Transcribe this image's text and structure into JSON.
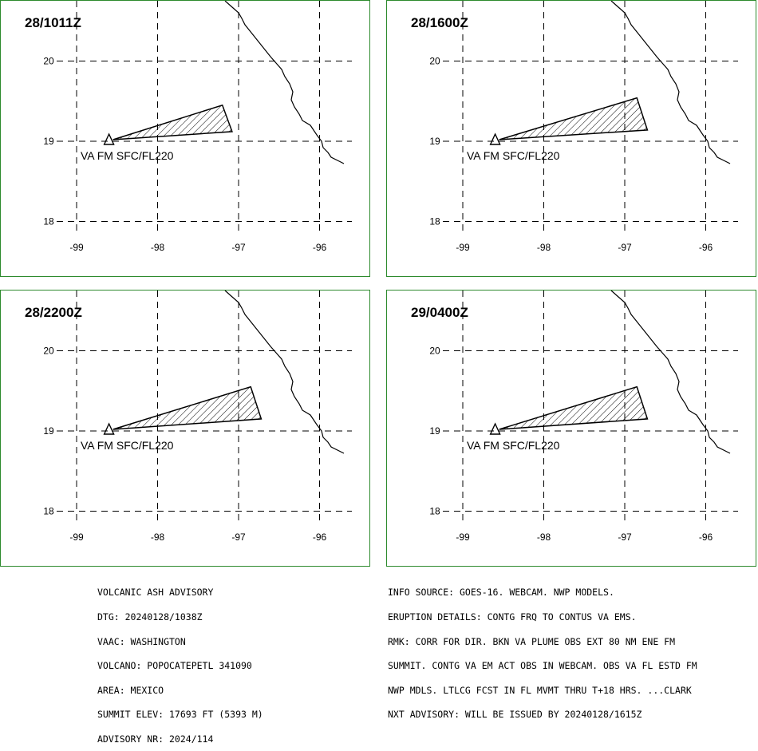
{
  "panels": [
    {
      "title": "28/1011Z",
      "label": "VA FM SFC/FL220",
      "polygon": [
        [
          -98.55,
          19.02
        ],
        [
          -97.2,
          19.45
        ],
        [
          -97.08,
          19.12
        ]
      ]
    },
    {
      "title": "28/1600Z",
      "label": "VA FM SFC/FL220",
      "polygon": [
        [
          -98.55,
          19.02
        ],
        [
          -96.85,
          19.54
        ],
        [
          -96.72,
          19.14
        ]
      ]
    },
    {
      "title": "28/2200Z",
      "label": "VA FM SFC/FL220",
      "polygon": [
        [
          -98.55,
          19.02
        ],
        [
          -96.85,
          19.55
        ],
        [
          -96.72,
          19.15
        ]
      ]
    },
    {
      "title": "29/0400Z",
      "label": "VA FM SFC/FL220",
      "polygon": [
        [
          -98.55,
          19.02
        ],
        [
          -96.85,
          19.55
        ],
        [
          -96.72,
          19.15
        ]
      ]
    }
  ],
  "map": {
    "lat_labels": [
      "20",
      "19",
      "18"
    ],
    "lon_labels": [
      "-99",
      "-98",
      "-97",
      "-96"
    ],
    "lat_values": [
      20,
      19,
      18
    ],
    "lon_values": [
      -99,
      -98,
      -97,
      -96
    ],
    "volcano_lon": -98.6,
    "volcano_lat": 19.02
  },
  "advisory_left": [
    "VOLCANIC ASH ADVISORY",
    "DTG: 20240128/1038Z",
    "VAAC: WASHINGTON",
    "VOLCANO: POPOCATEPETL 341090",
    "AREA: MEXICO",
    "SUMMIT ELEV: 17693 FT (5393 M)",
    "ADVISORY NR: 2024/114"
  ],
  "advisory_right": [
    "INFO SOURCE: GOES-16. WEBCAM. NWP MODELS.",
    "ERUPTION DETAILS: CONTG FRQ TO CONTUS VA EMS.",
    "RMK: CORR FOR DIR. BKN VA PLUME OBS EXT 80 NM ENE FM",
    "SUMMIT. CONTG VA EM ACT OBS IN WEBCAM. OBS VA FL ESTD FM",
    "NWP MDLS. LTLCG FCST IN FL MVMT THRU T+18 HRS. ...CLARK",
    "NXT ADVISORY: WILL BE ISSUED BY 20240128/1615Z"
  ],
  "colors": {
    "panel_border": "#2d8a2d",
    "ink": "#000000"
  }
}
